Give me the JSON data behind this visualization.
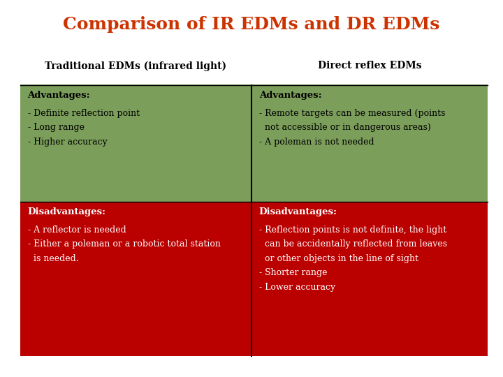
{
  "title": "Comparison of IR EDMs and DR EDMs",
  "title_color": "#CC3300",
  "title_fontsize": 18,
  "col1_header": "Traditional EDMs (infrared light)",
  "col2_header": "Direct reflex EDMs",
  "header_fontsize": 10,
  "header_color": "#000000",
  "green_color": "#7B9E5A",
  "red_color": "#BB0000",
  "text_color_green": "#000000",
  "text_color_red": "#FFFFFF",
  "bg_color": "#FFFFFF",
  "divider_color": "#000000",
  "col1_adv_title": "Advantages:",
  "col1_adv_items": [
    "- Definite reflection point",
    "- Long range",
    "- Higher accuracy"
  ],
  "col2_adv_title": "Advantages:",
  "col2_adv_items": [
    "- Remote targets can be measured (points",
    "  not accessible or in dangerous areas)",
    "- A poleman is not needed"
  ],
  "col1_dis_title": "Disadvantages:",
  "col1_dis_items": [
    "- A reflector is needed",
    "- Either a poleman or a robotic total station",
    "  is needed."
  ],
  "col2_dis_title": "Disadvantages:",
  "col2_dis_items": [
    "- Reflection points is not definite, the light",
    "  can be accidentally reflected from leaves",
    "  or other objects in the line of sight",
    "- Shorter range",
    "- Lower accuracy"
  ],
  "content_fontsize": 9,
  "bold_fontsize": 9.5
}
